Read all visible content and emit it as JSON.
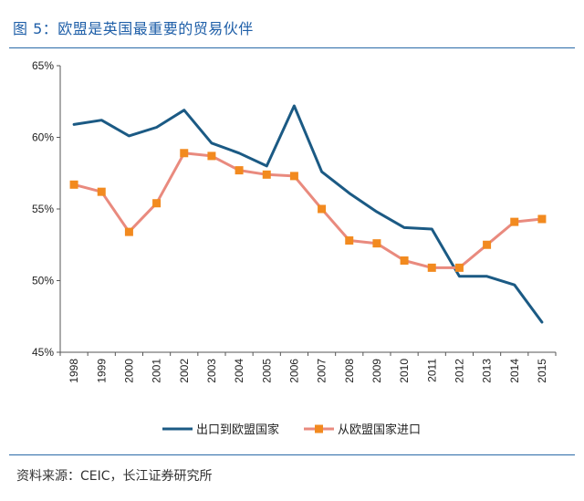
{
  "figure": {
    "title": "图 5：欧盟是英国最重要的贸易伙伴",
    "source": "资料来源：CEIC，长江证券研究所"
  },
  "colors": {
    "exports": "#1b5a84",
    "imports": "#e98a7e",
    "imports_marker": "#f28a1f",
    "rule": "#2a6aa8",
    "title": "#1f5fa8"
  },
  "chart_data": {
    "type": "line",
    "title": "",
    "xlabel": "",
    "ylabel": "",
    "ylim": [
      45,
      65
    ],
    "yticks": [
      45,
      50,
      55,
      60,
      65
    ],
    "ytick_labels": [
      "45%",
      "50%",
      "55%",
      "60%",
      "65%"
    ],
    "categories": [
      "1998",
      "1999",
      "2000",
      "2001",
      "2002",
      "2003",
      "2004",
      "2005",
      "2006",
      "2007",
      "2008",
      "2009",
      "2010",
      "2011",
      "2012",
      "2013",
      "2014",
      "2015"
    ],
    "legend_position": "bottom",
    "grid": false,
    "series": [
      {
        "name": "出口到欧盟国家",
        "marker": "none",
        "values": [
          60.9,
          61.2,
          60.1,
          60.7,
          61.9,
          59.6,
          58.9,
          58.0,
          62.2,
          57.6,
          56.1,
          54.8,
          53.7,
          53.6,
          50.3,
          50.3,
          49.7,
          47.1
        ]
      },
      {
        "name": "从欧盟国家进口",
        "marker": "square",
        "values": [
          56.7,
          56.2,
          53.4,
          55.4,
          58.9,
          58.7,
          57.7,
          57.4,
          57.3,
          55.0,
          52.8,
          52.6,
          51.4,
          50.9,
          50.9,
          52.5,
          54.1,
          54.3
        ]
      }
    ]
  }
}
